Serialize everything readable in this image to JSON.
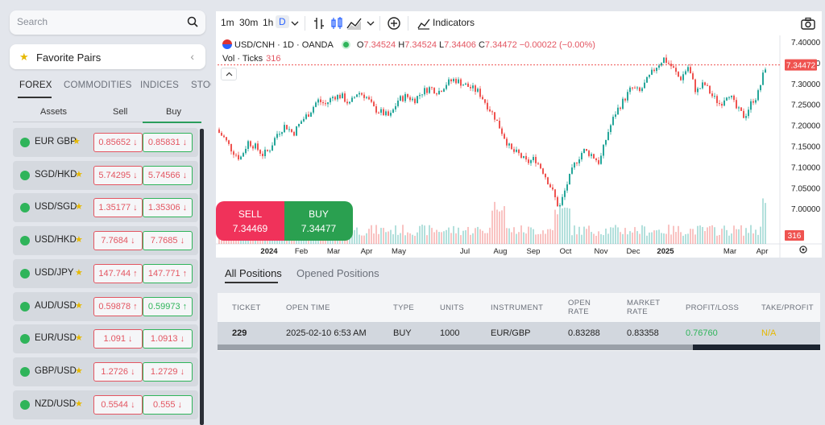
{
  "sidebar": {
    "search_placeholder": "Search",
    "favorites_label": "Favorite Pairs",
    "categories": [
      "FOREX",
      "COMMODITIES",
      "INDICES",
      "STOCKS"
    ],
    "active_category": "FOREX",
    "columns": {
      "assets": "Assets",
      "sell": "Sell",
      "buy": "Buy"
    },
    "pairs": [
      {
        "name": "EUR GBP",
        "sell": "0.85652",
        "buy": "0.85831",
        "sell_dir": "down",
        "buy_dir": "down"
      },
      {
        "name": "SGD/HKD",
        "sell": "5.74295",
        "buy": "5.74566",
        "sell_dir": "down",
        "buy_dir": "down"
      },
      {
        "name": "USD/SGD",
        "sell": "1.35177",
        "buy": "1.35306",
        "sell_dir": "down",
        "buy_dir": "down"
      },
      {
        "name": "USD/HKD",
        "sell": "7.7684",
        "buy": "7.7685",
        "sell_dir": "down",
        "buy_dir": "down"
      },
      {
        "name": "USD/JPY",
        "sell": "147.744",
        "buy": "147.771",
        "sell_dir": "up",
        "buy_dir": "up"
      },
      {
        "name": "AUD/USD",
        "sell": "0.59878",
        "buy": "0.59973",
        "sell_dir": "up",
        "buy_dir": "up"
      },
      {
        "name": "EUR/USD",
        "sell": "1.091",
        "buy": "1.0913",
        "sell_dir": "down",
        "buy_dir": "down"
      },
      {
        "name": "GBP/USD",
        "sell": "1.2726",
        "buy": "1.2729",
        "sell_dir": "down",
        "buy_dir": "down"
      },
      {
        "name": "NZD/USD",
        "sell": "0.5544",
        "buy": "0.555",
        "sell_dir": "down",
        "buy_dir": "down"
      }
    ]
  },
  "chart": {
    "toolbar": {
      "intervals": [
        "1m",
        "30m",
        "1h",
        "D"
      ],
      "active_interval": "D",
      "indicators_label": "Indicators"
    },
    "symbol": "USD/CNH · 1D · OANDA",
    "ohlc": {
      "o_label": "O",
      "o": "7.34524",
      "h_label": "H",
      "h": "7.34524",
      "l_label": "L",
      "l": "7.34406",
      "c_label": "C",
      "c": "7.34472",
      "change": "−0.00022 (−0.00%)"
    },
    "volume_label": "Vol · Ticks",
    "volume_value": "316",
    "price_axis": [
      "7.40000",
      "7.35000",
      "7.30000",
      "7.25000",
      "7.20000",
      "7.15000",
      "7.10000",
      "7.05000",
      "7.00000"
    ],
    "current_price_tag": "7.34472",
    "volume_tag": "316",
    "time_axis": [
      "2024",
      "Feb",
      "Mar",
      "Apr",
      "May",
      "Jul",
      "Aug",
      "Sep",
      "Oct",
      "Nov",
      "Dec",
      "2025",
      "Mar",
      "Apr"
    ],
    "sell_label": "SELL",
    "sell_price": "7.34469",
    "buy_label": "BUY",
    "buy_price": "7.34477",
    "colors": {
      "up": "#26a69a",
      "down": "#ef5350"
    }
  },
  "positions": {
    "tabs": [
      "All Positions",
      "Opened Positions"
    ],
    "active_tab": "All Positions",
    "headers": [
      "TICKET",
      "OPEN TIME",
      "TYPE",
      "UNITS",
      "INSTRUMENT",
      "OPEN RATE",
      "MARKET RATE",
      "PROFIT/LOSS",
      "TAKE/PROFIT"
    ],
    "rows": [
      {
        "ticket": "229",
        "open_time": "2025-02-10 6:53 AM",
        "type": "BUY",
        "units": "1000",
        "instrument": "EUR/GBP",
        "open_rate": "0.83288",
        "market_rate": "0.83358",
        "profit_loss": "0.76760",
        "take_profit": "N/A"
      }
    ]
  }
}
